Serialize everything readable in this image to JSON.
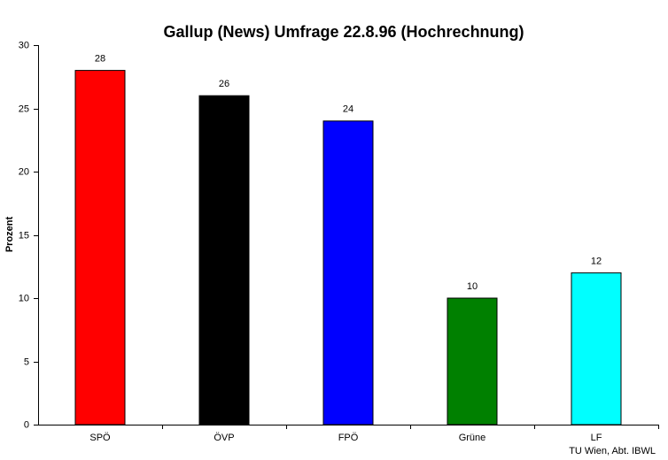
{
  "chart_data": {
    "type": "bar",
    "title": "Gallup (News) Umfrage 22.8.96 (Hochrechnung)",
    "y_label": "Prozent",
    "annotation": "TU Wien, Abt. IBWL",
    "categories": [
      "SPÖ",
      "ÖVP",
      "FPÖ",
      "Grüne",
      "LF"
    ],
    "values": [
      28,
      26,
      24,
      10,
      12
    ],
    "colors": [
      "#ff0000",
      "#000000",
      "#0000ff",
      "#008000",
      "#00ffff"
    ],
    "ylim": [
      0,
      30
    ],
    "yticks": [
      0,
      5,
      10,
      15,
      20,
      25,
      30
    ],
    "grid": false
  }
}
